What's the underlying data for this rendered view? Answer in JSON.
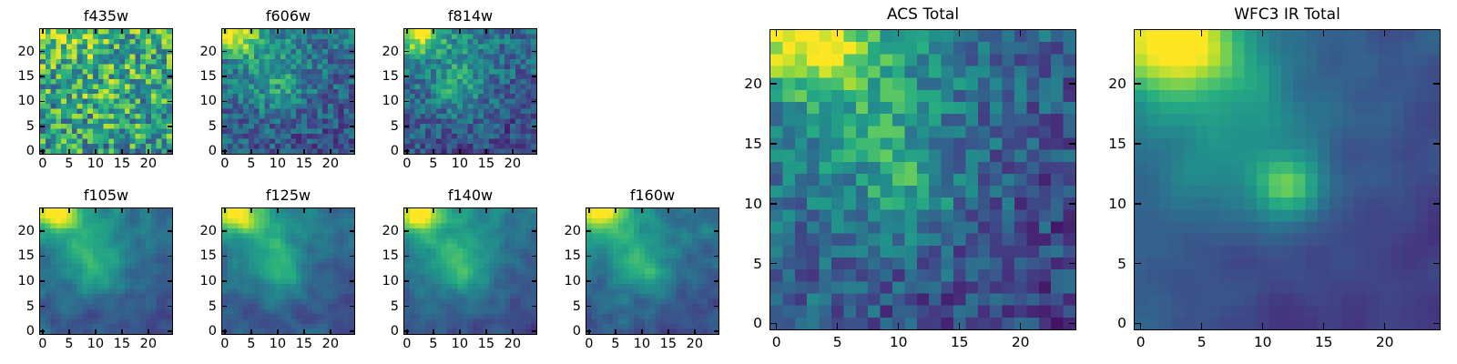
{
  "figure": {
    "background": "#ffffff",
    "axis_color": "#000000",
    "note": "Grid of astronomical cutout heatmaps (viridis colormap): bright source in upper-left corner, diffuse emission toward center, compact knot near (12,11), dark purple sky background.",
    "colormap": {
      "name": "viridis",
      "stops": [
        "#440154",
        "#46327e",
        "#3b528b",
        "#2c718e",
        "#21918c",
        "#27ad81",
        "#5ec962",
        "#aadc32",
        "#fde725"
      ]
    }
  },
  "chart_data": [
    {
      "type": "heatmap",
      "title": "f435w",
      "xlabel": "",
      "ylabel": "",
      "grid": {
        "cols": 25,
        "rows": 25
      },
      "xlim": [
        -0.5,
        24.5
      ],
      "ylim": [
        -0.5,
        24.5
      ],
      "x_ticks": [
        0,
        5,
        10,
        15,
        20
      ],
      "y_ticks": [
        0,
        5,
        10,
        15,
        20
      ],
      "origin": "lower",
      "colormap": "viridis",
      "legend": "none",
      "grid_lines": false,
      "synthesis": {
        "seed": 101,
        "base": 0.6,
        "noise": 0.33,
        "smooth": 0,
        "grad": [
          -0.02,
          0.1
        ],
        "blobs": [
          [
            0.22,
            2,
            24,
            3.0,
            2.8
          ],
          [
            0.06,
            9,
            15.5,
            4.2,
            5.5
          ]
        ]
      }
    },
    {
      "type": "heatmap",
      "title": "f606w",
      "xlabel": "",
      "ylabel": "",
      "grid": {
        "cols": 25,
        "rows": 25
      },
      "xlim": [
        -0.5,
        24.5
      ],
      "ylim": [
        -0.5,
        24.5
      ],
      "x_ticks": [
        0,
        5,
        10,
        15,
        20
      ],
      "y_ticks": [
        0,
        5,
        10,
        15,
        20
      ],
      "origin": "lower",
      "colormap": "viridis",
      "legend": "none",
      "grid_lines": false,
      "synthesis": {
        "seed": 102,
        "base": 0.33,
        "noise": 0.19,
        "smooth": 0,
        "grad": [
          -0.05,
          0.16
        ],
        "blobs": [
          [
            0.62,
            2,
            24,
            3.0,
            2.8
          ],
          [
            0.2,
            9,
            16,
            4.2,
            5.5
          ],
          [
            0.1,
            11,
            11,
            2.5,
            2.5
          ]
        ]
      }
    },
    {
      "type": "heatmap",
      "title": "f814w",
      "xlabel": "",
      "ylabel": "",
      "grid": {
        "cols": 25,
        "rows": 25
      },
      "xlim": [
        -0.5,
        24.5
      ],
      "ylim": [
        -0.5,
        24.5
      ],
      "x_ticks": [
        0,
        5,
        10,
        15,
        20
      ],
      "y_ticks": [
        0,
        5,
        10,
        15,
        20
      ],
      "origin": "lower",
      "colormap": "viridis",
      "legend": "none",
      "grid_lines": false,
      "synthesis": {
        "seed": 103,
        "base": 0.31,
        "noise": 0.18,
        "smooth": 0,
        "grad": [
          -0.06,
          0.16
        ],
        "blobs": [
          [
            0.66,
            2,
            24,
            3.0,
            2.8
          ],
          [
            0.2,
            9.5,
            15.5,
            4.2,
            5.5
          ],
          [
            0.12,
            10.5,
            11.5,
            2.5,
            2.5
          ]
        ]
      }
    },
    {
      "type": "heatmap",
      "title": "f105w",
      "xlabel": "",
      "ylabel": "",
      "grid": {
        "cols": 25,
        "rows": 25
      },
      "xlim": [
        -0.5,
        24.5
      ],
      "ylim": [
        -0.5,
        24.5
      ],
      "x_ticks": [
        0,
        5,
        10,
        15,
        20
      ],
      "y_ticks": [
        0,
        5,
        10,
        15,
        20
      ],
      "origin": "lower",
      "colormap": "viridis",
      "legend": "none",
      "grid_lines": false,
      "synthesis": {
        "seed": 104,
        "base": 0.34,
        "noise": 0.16,
        "smooth": 1,
        "grad": [
          -0.06,
          0.18
        ],
        "blobs": [
          [
            0.68,
            2,
            24,
            3.1,
            2.9
          ],
          [
            0.26,
            9,
            16,
            4.2,
            5.8
          ],
          [
            0.12,
            11,
            11,
            2.5,
            2.5
          ]
        ]
      }
    },
    {
      "type": "heatmap",
      "title": "f125w",
      "xlabel": "",
      "ylabel": "",
      "grid": {
        "cols": 25,
        "rows": 25
      },
      "xlim": [
        -0.5,
        24.5
      ],
      "ylim": [
        -0.5,
        24.5
      ],
      "x_ticks": [
        0,
        5,
        10,
        15,
        20
      ],
      "y_ticks": [
        0,
        5,
        10,
        15,
        20
      ],
      "origin": "lower",
      "colormap": "viridis",
      "legend": "none",
      "grid_lines": false,
      "synthesis": {
        "seed": 105,
        "base": 0.33,
        "noise": 0.17,
        "smooth": 1,
        "grad": [
          -0.05,
          0.16
        ],
        "blobs": [
          [
            0.68,
            2,
            24,
            3.1,
            2.9
          ],
          [
            0.24,
            9,
            16,
            4.2,
            5.6
          ],
          [
            0.16,
            11,
            10.5,
            2.4,
            2.4
          ]
        ]
      }
    },
    {
      "type": "heatmap",
      "title": "f140w",
      "xlabel": "",
      "ylabel": "",
      "grid": {
        "cols": 25,
        "rows": 25
      },
      "xlim": [
        -0.5,
        24.5
      ],
      "ylim": [
        -0.5,
        24.5
      ],
      "x_ticks": [
        0,
        5,
        10,
        15,
        20
      ],
      "y_ticks": [
        0,
        5,
        10,
        15,
        20
      ],
      "origin": "lower",
      "colormap": "viridis",
      "legend": "none",
      "grid_lines": false,
      "synthesis": {
        "seed": 106,
        "base": 0.34,
        "noise": 0.17,
        "smooth": 1,
        "grad": [
          -0.05,
          0.16
        ],
        "blobs": [
          [
            0.68,
            2,
            24,
            3.1,
            2.9
          ],
          [
            0.26,
            9.5,
            15.5,
            4.4,
            5.6
          ],
          [
            0.15,
            11.5,
            11,
            2.5,
            2.5
          ]
        ]
      }
    },
    {
      "type": "heatmap",
      "title": "f160w",
      "xlabel": "",
      "ylabel": "",
      "grid": {
        "cols": 25,
        "rows": 25
      },
      "xlim": [
        -0.5,
        24.5
      ],
      "ylim": [
        -0.5,
        24.5
      ],
      "x_ticks": [
        0,
        5,
        10,
        15,
        20
      ],
      "y_ticks": [
        0,
        5,
        10,
        15,
        20
      ],
      "origin": "lower",
      "colormap": "viridis",
      "legend": "none",
      "grid_lines": false,
      "synthesis": {
        "seed": 107,
        "base": 0.33,
        "noise": 0.17,
        "smooth": 1,
        "grad": [
          -0.05,
          0.16
        ],
        "blobs": [
          [
            0.7,
            2,
            24,
            3.1,
            2.9
          ],
          [
            0.24,
            9,
            15.5,
            4.2,
            5.6
          ],
          [
            0.18,
            11.5,
            11.5,
            2.4,
            2.4
          ]
        ]
      }
    },
    {
      "type": "heatmap",
      "title": "ACS Total",
      "xlabel": "",
      "ylabel": "",
      "grid": {
        "cols": 25,
        "rows": 25
      },
      "xlim": [
        -0.5,
        24.5
      ],
      "ylim": [
        -0.5,
        24.5
      ],
      "x_ticks": [
        0,
        5,
        10,
        15,
        20
      ],
      "y_ticks": [
        0,
        5,
        10,
        15,
        20
      ],
      "origin": "lower",
      "colormap": "viridis",
      "legend": "none",
      "grid_lines": false,
      "synthesis": {
        "seed": 108,
        "base": 0.3,
        "noise": 0.17,
        "smooth": 0,
        "grad": [
          -0.13,
          0.12
        ],
        "blobs": [
          [
            0.66,
            2.5,
            24,
            3.4,
            3.0
          ],
          [
            0.24,
            8.5,
            17,
            4.6,
            5.5
          ],
          [
            0.2,
            11,
            10.5,
            2.6,
            2.6
          ]
        ]
      }
    },
    {
      "type": "heatmap",
      "title": "WFC3 IR Total",
      "xlabel": "",
      "ylabel": "",
      "grid": {
        "cols": 25,
        "rows": 25
      },
      "xlim": [
        -0.5,
        24.5
      ],
      "ylim": [
        -0.5,
        24.5
      ],
      "x_ticks": [
        0,
        5,
        10,
        15,
        20
      ],
      "y_ticks": [
        0,
        5,
        10,
        15,
        20
      ],
      "origin": "lower",
      "colormap": "viridis",
      "legend": "none",
      "grid_lines": false,
      "synthesis": {
        "seed": 109,
        "base": 0.27,
        "noise": 0.14,
        "smooth": 2,
        "grad": [
          -0.15,
          0.14
        ],
        "blobs": [
          [
            0.78,
            2.5,
            24,
            3.6,
            3.2
          ],
          [
            0.18,
            8,
            17,
            4.6,
            5.2
          ],
          [
            0.42,
            12,
            11.5,
            2.1,
            2.1
          ]
        ]
      }
    }
  ]
}
